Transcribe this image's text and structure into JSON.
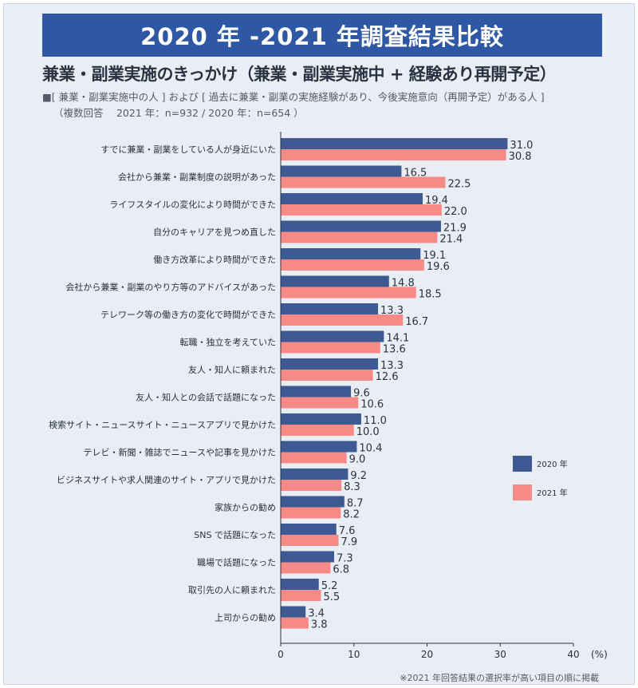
{
  "title": "2020 年 -2021 年調査結果比較",
  "subtitle": "兼業・副業実施のきっかけ（兼業・副業実施中 + 経験あり再開予定）",
  "note_line1": "■[ 兼業・副業実施中の人 ] および [ 過去に兼業・副業の実施経験があり、今後実施意向（再開予定）がある人 ]",
  "note_line2": "（複数回答　 2021 年：n=932 / 2020 年：n=654 ）",
  "footnote": "※2021 年回答結果の選択率が高い項目の順に掲載",
  "colors": {
    "series_2020": "#3e5a92",
    "series_2021": "#f58a87",
    "background": "#e8eef4",
    "title_bg": "#2f58a4"
  },
  "chart_data": {
    "type": "bar",
    "orientation": "horizontal",
    "unit_label": "(%)",
    "xlim": [
      0,
      40
    ],
    "xticks": [
      0,
      10,
      20,
      30,
      40
    ],
    "categories": [
      "すでに兼業・副業をしている人が身近にいた",
      "会社から兼業・副業制度の説明があった",
      "ライフスタイルの変化により時間ができた",
      "自分のキャリアを見つめ直した",
      "働き方改革により時間ができた",
      "会社から兼業・副業のやり方等のアドバイスがあった",
      "テレワーク等の働き方の変化で時間ができた",
      "転職・独立を考えていた",
      "友人・知人に頼まれた",
      "友人・知人との会話で話題になった",
      "検索サイト・ニュースサイト・ニュースアプリで見かけた",
      "テレビ・新聞・雑誌でニュースや記事を見かけた",
      "ビジネスサイトや求人関連のサイト・アプリで見かけた",
      "家族からの勧め",
      "SNS で話題になった",
      "職場で話題になった",
      "取引先の人に頼まれた",
      "上司からの勧め"
    ],
    "series": [
      {
        "name": "2020 年",
        "values": [
          31.0,
          16.5,
          19.4,
          21.9,
          19.1,
          14.8,
          13.3,
          14.1,
          13.3,
          9.6,
          11.0,
          10.4,
          9.2,
          8.7,
          7.6,
          7.3,
          5.2,
          3.4
        ],
        "labels": [
          "31.0",
          "16.5",
          "19.4",
          "21.9",
          "19.1",
          "14.8",
          "13.3",
          "14.1",
          "13.3",
          "9.6",
          "11.0",
          "10.4",
          "9.2",
          "8.7",
          "7.6",
          "7.3",
          "5.2",
          "3.4"
        ]
      },
      {
        "name": "2021 年",
        "values": [
          30.8,
          22.5,
          22.0,
          21.4,
          19.6,
          18.5,
          16.7,
          13.6,
          12.6,
          10.6,
          10.0,
          9.0,
          8.3,
          8.2,
          7.9,
          6.8,
          5.5,
          3.8
        ],
        "labels": [
          "30.8",
          "22.5",
          "22.0",
          "21.4",
          "19.6",
          "18.5",
          "16.7",
          "13.6",
          "12.6",
          "10.6",
          "10.0",
          "9.0",
          "8.3",
          "8.2",
          "7.9",
          "6.8",
          "5.5",
          "3.8"
        ]
      }
    ],
    "legend_position": "right"
  }
}
